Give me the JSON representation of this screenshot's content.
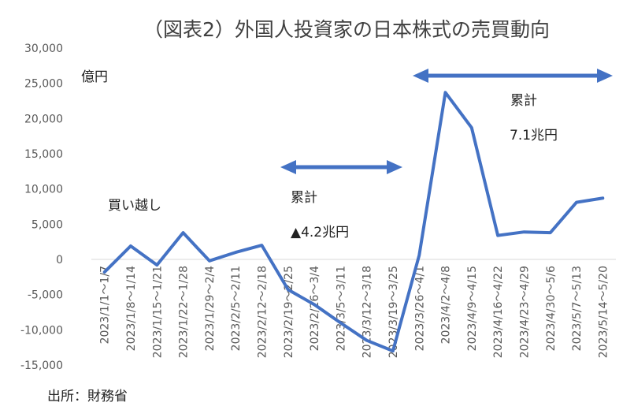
{
  "chart_data": {
    "type": "line",
    "title": "（図表2）外国人投資家の日本株式の売買動向",
    "unit_label": "億円",
    "source": "出所：財務省",
    "ylim": [
      -15000,
      30000
    ],
    "yticks": [
      30000,
      25000,
      20000,
      15000,
      10000,
      5000,
      0,
      -5000,
      -10000,
      -15000
    ],
    "ytick_labels": [
      "30,000",
      "25,000",
      "20,000",
      "15,000",
      "10,000",
      "5,000",
      "0",
      "-5,000",
      "-10,000",
      "-15,000"
    ],
    "categories": [
      "2023/1/1～1/7",
      "2023/1/8～1/14",
      "2023/1/15～1/21",
      "2023/1/22～1/28",
      "2023/1/29～2/4",
      "2023/2/5～2/11",
      "2023/2/12～2/18",
      "2023/2/19～2/25",
      "2023/2/26～3/4",
      "2023/3/5～3/11",
      "2023/3/12～3/18",
      "2023/3/19～3/25",
      "2023/3/26～4/1",
      "2023/4/2～4/8",
      "2023/4/9～4/15",
      "2023/4/16～4/22",
      "2023/4/23～4/29",
      "2023/4/30～5/6",
      "2023/5/7～5/13",
      "2023/5/14～5/20"
    ],
    "series": [
      {
        "name": "",
        "color": "#4472c4",
        "values": [
          -1800,
          1900,
          -800,
          3800,
          -200,
          1000,
          2000,
          -4300,
          -6400,
          -9000,
          -11500,
          -13000,
          600,
          23700,
          18700,
          3400,
          3900,
          3800,
          8100,
          8700
        ]
      }
    ],
    "grid": false,
    "annotations": {
      "buy_label": "買い越し",
      "range1_label": "累計",
      "range1_value": "▲4.2兆円",
      "range2_label": "累計",
      "range2_value": "7.1兆円"
    }
  }
}
